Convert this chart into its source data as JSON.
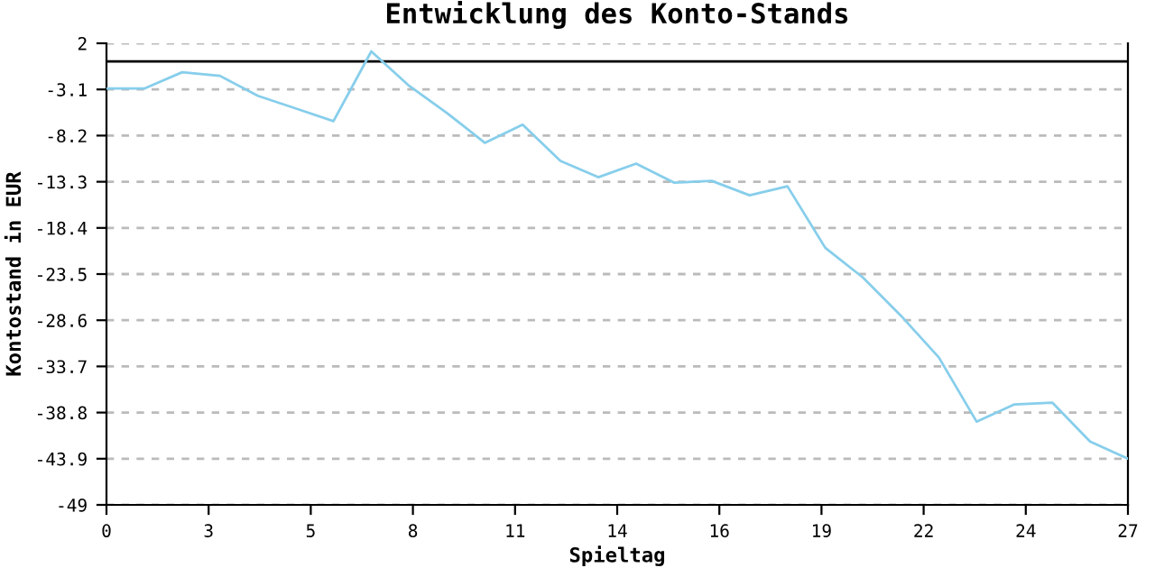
{
  "chart_data": {
    "type": "line",
    "title": "Entwicklung des Konto-Stands",
    "xlabel": "Spieltag",
    "ylabel": "Kontostand in EUR",
    "x": [
      0,
      1,
      2,
      3,
      4,
      5,
      6,
      7,
      8,
      9,
      10,
      11,
      12,
      13,
      14,
      15,
      16,
      17,
      18,
      19,
      20,
      21,
      22,
      23,
      24,
      25,
      26,
      27
    ],
    "series": [
      {
        "color": "#87ceeb",
        "values": [
          -3.0,
          -3.0,
          -1.2,
          -1.6,
          -3.8,
          -5.2,
          -6.6,
          1.1,
          -2.7,
          -5.7,
          -9.0,
          -7.0,
          -11.0,
          -12.8,
          -11.3,
          -13.4,
          -13.2,
          -14.8,
          -13.8,
          -20.6,
          -23.9,
          -28.1,
          -32.7,
          -39.8,
          -37.9,
          -37.7,
          -42.0,
          -43.9
        ]
      }
    ],
    "xlim": [
      0,
      27
    ],
    "xticks": [
      0,
      {
        "value": 2.7,
        "label": "3"
      },
      {
        "value": 5.4,
        "label": "5"
      },
      {
        "value": 8.1,
        "label": "8"
      },
      {
        "value": 10.8,
        "label": "11"
      },
      {
        "value": 13.5,
        "label": "14"
      },
      {
        "value": 16.2,
        "label": "16"
      },
      {
        "value": 18.9,
        "label": "19"
      },
      {
        "value": 21.6,
        "label": "22"
      },
      {
        "value": 24.3,
        "label": "24"
      },
      27
    ],
    "ylim": [
      -49,
      2
    ],
    "yticks": [
      2,
      -3.1,
      -8.2,
      -13.3,
      -18.4,
      -23.5,
      -28.6,
      -33.7,
      -38.8,
      -43.9,
      -49
    ],
    "ref_lines": [
      {
        "axis": "y",
        "value": 0,
        "color": "#000000",
        "line_style": "solid"
      }
    ],
    "grid": "y",
    "marker": "none",
    "line_style": "solid"
  }
}
